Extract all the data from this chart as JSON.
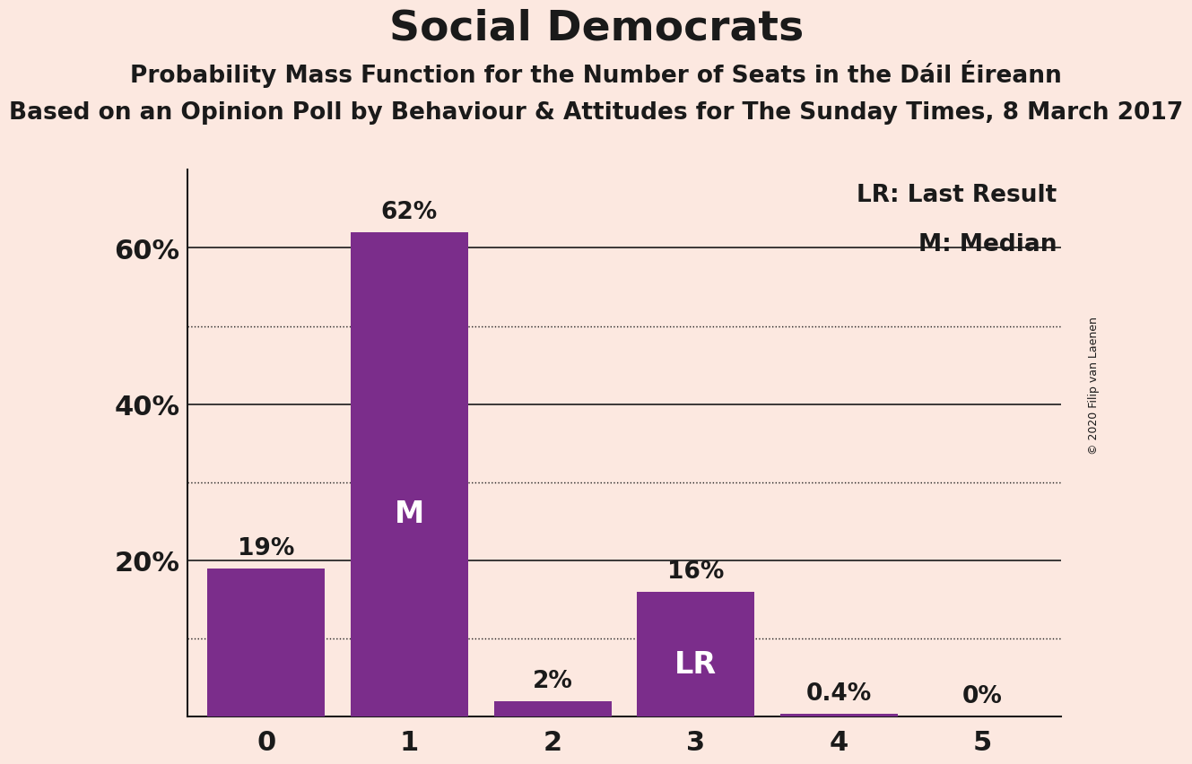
{
  "title": "Social Democrats",
  "subtitle1": "Probability Mass Function for the Number of Seats in the Dáil Éireann",
  "subtitle2": "Based on an Opinion Poll by Behaviour & Attitudes for The Sunday Times, 8 March 2017",
  "copyright": "© 2020 Filip van Laenen",
  "categories": [
    0,
    1,
    2,
    3,
    4,
    5
  ],
  "values": [
    0.19,
    0.62,
    0.02,
    0.16,
    0.004,
    0.0
  ],
  "bar_color": "#7b2d8b",
  "background_color": "#fce8e0",
  "bar_labels": [
    "19%",
    "62%",
    "2%",
    "16%",
    "0.4%",
    "0%"
  ],
  "bar_annotations": [
    null,
    "M",
    null,
    "LR",
    null,
    null
  ],
  "legend_lr": "LR: Last Result",
  "legend_m": "M: Median",
  "ytick_labels": [
    "",
    "20%",
    "40%",
    "60%"
  ],
  "ytick_values": [
    0.0,
    0.2,
    0.4,
    0.6
  ],
  "dotted_lines": [
    0.1,
    0.3,
    0.5
  ],
  "solid_lines": [
    0.2,
    0.4,
    0.6
  ],
  "title_fontsize": 34,
  "subtitle1_fontsize": 19,
  "subtitle2_fontsize": 19,
  "label_fontsize": 19,
  "annotation_fontsize": 24,
  "tick_fontsize": 22,
  "legend_fontsize": 19,
  "copyright_fontsize": 9,
  "bar_width": 0.82
}
